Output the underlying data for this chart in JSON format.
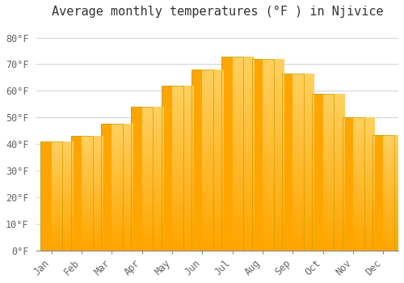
{
  "title": "Average monthly temperatures (°F ) in Njivice",
  "months": [
    "Jan",
    "Feb",
    "Mar",
    "Apr",
    "May",
    "Jun",
    "Jul",
    "Aug",
    "Sep",
    "Oct",
    "Nov",
    "Dec"
  ],
  "values": [
    41.0,
    43.0,
    47.5,
    54.0,
    62.0,
    68.0,
    73.0,
    72.0,
    66.5,
    59.0,
    50.0,
    43.5
  ],
  "bar_color_main": "#FFA500",
  "bar_color_light": "#FFD060",
  "bar_edge_color": "#C8A000",
  "background_color": "#FFFFFF",
  "plot_bg_color": "#FFFFFF",
  "grid_color": "#D0D8E0",
  "ylim": [
    0,
    85
  ],
  "yticks": [
    0,
    10,
    20,
    30,
    40,
    50,
    60,
    70,
    80
  ],
  "ylabel_format": "°F",
  "title_fontsize": 11,
  "tick_fontsize": 8.5,
  "font_family": "monospace"
}
